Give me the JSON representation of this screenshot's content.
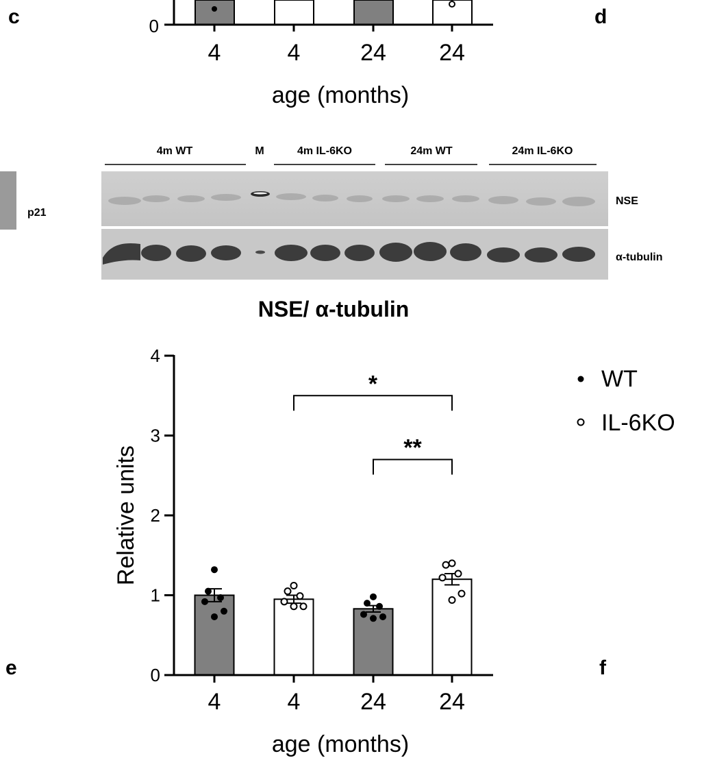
{
  "panel_letters": {
    "c": "c",
    "d": "d",
    "e": "e",
    "f": "f"
  },
  "top_chart": {
    "zero_label": "0",
    "x_ticks": [
      "4",
      "4",
      "24",
      "24"
    ],
    "xlabel": "age (months)"
  },
  "blot": {
    "groups": [
      "4m WT",
      "M",
      "4m IL-6KO",
      "24m WT",
      "24m IL-6KO"
    ],
    "row_labels": [
      "NSE",
      "α-tubulin"
    ],
    "left_label": "p21"
  },
  "chart_title": "NSE/ α-tubulin",
  "legend": [
    {
      "name": "WT",
      "marker": "•"
    },
    {
      "name": "IL-6KO",
      "marker": "∘"
    }
  ],
  "significance": [
    "*",
    "**"
  ],
  "colors": {
    "wt_bar": "#808080",
    "ko_bar": "#ffffff",
    "axis": "#000000"
  },
  "chart_data": {
    "type": "bar",
    "title": "NSE/ α-tubulin",
    "xlabel": "age (months)",
    "ylabel": "Relative units",
    "ylim": [
      0,
      4
    ],
    "yticks": [
      0,
      1,
      2,
      3,
      4
    ],
    "categories": [
      "4",
      "4",
      "24",
      "24"
    ],
    "bars": [
      {
        "group": "WT",
        "mean": 1.0,
        "sem": 0.08,
        "points": [
          1.32,
          1.05,
          0.97,
          0.92,
          0.8,
          0.73
        ]
      },
      {
        "group": "IL-6KO",
        "mean": 0.95,
        "sem": 0.05,
        "points": [
          1.12,
          1.05,
          0.99,
          0.92,
          0.86,
          0.86
        ]
      },
      {
        "group": "WT",
        "mean": 0.83,
        "sem": 0.04,
        "points": [
          0.98,
          0.9,
          0.86,
          0.76,
          0.73,
          0.71
        ]
      },
      {
        "group": "IL-6KO",
        "mean": 1.2,
        "sem": 0.07,
        "points": [
          1.4,
          1.38,
          1.27,
          1.22,
          1.02,
          0.94
        ]
      }
    ],
    "comparisons": [
      {
        "from": 1,
        "to": 3,
        "y": 3.5,
        "label": "*"
      },
      {
        "from": 2,
        "to": 3,
        "y": 2.7,
        "label": "**"
      }
    ],
    "legend_position": "top-right"
  }
}
